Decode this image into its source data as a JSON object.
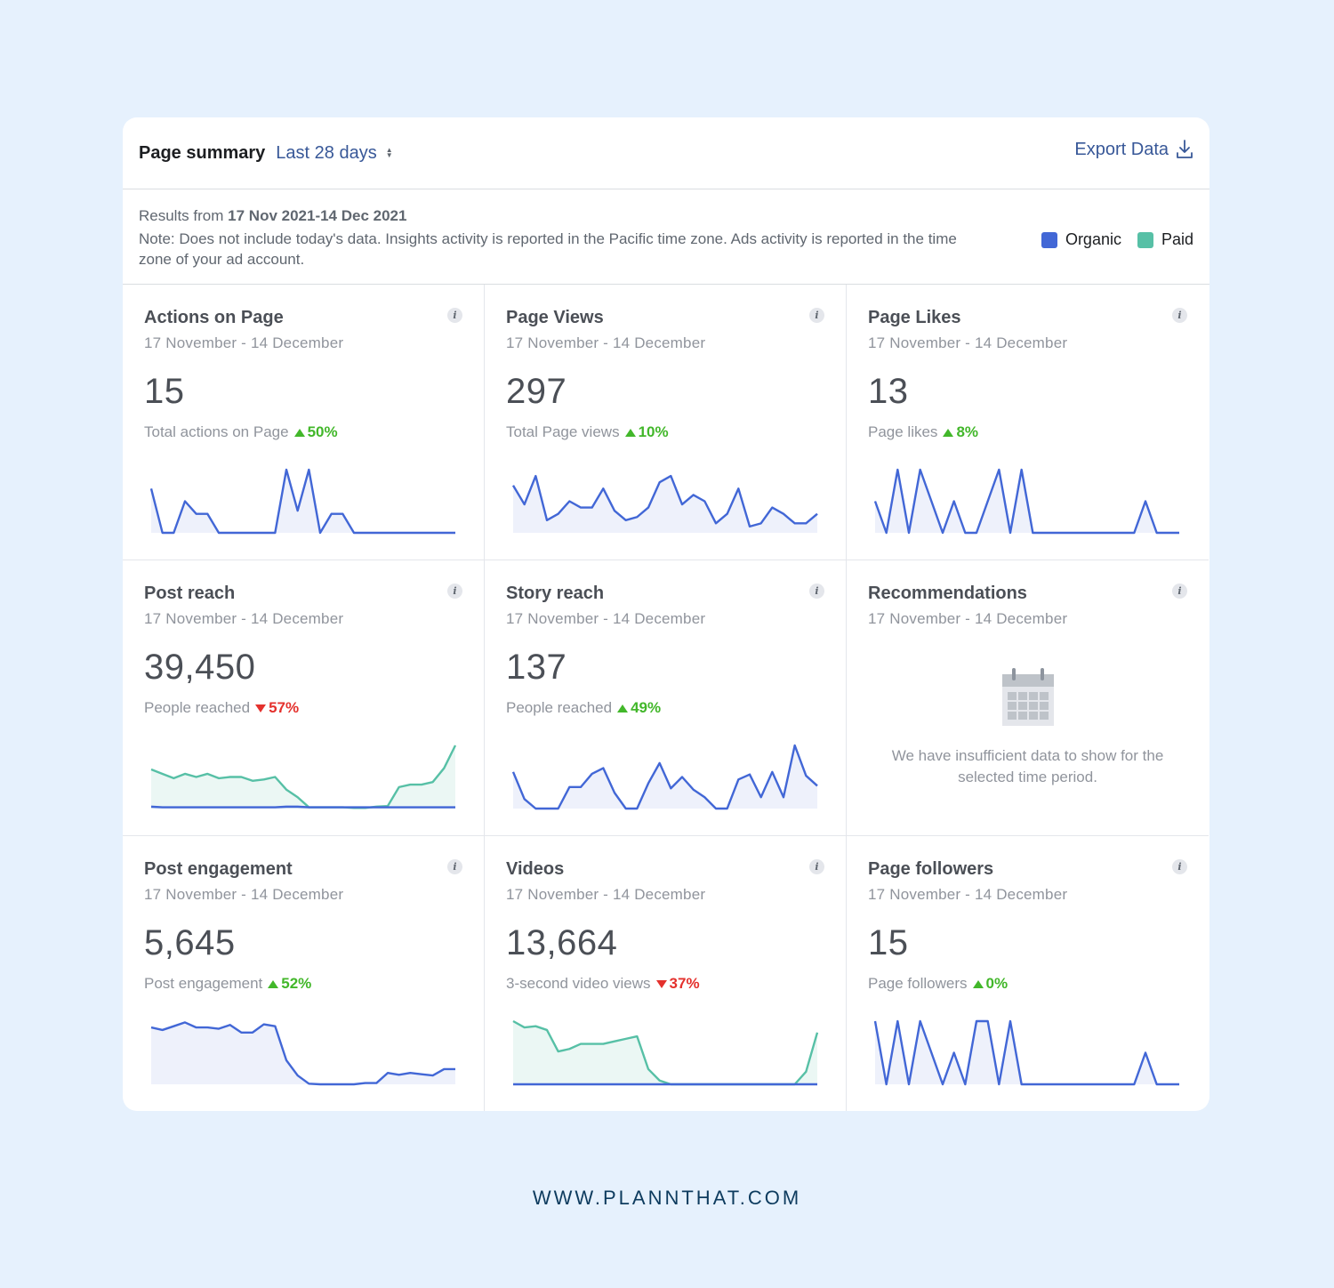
{
  "header": {
    "title": "Page summary",
    "range_label": "Last 28 days",
    "export_label": "Export Data"
  },
  "info": {
    "results_prefix": "Results from",
    "results_range": "17 Nov 2021-14 Dec 2021",
    "note": "Note: Does not include today's data. Insights activity is reported in the Pacific time zone. Ads activity is reported in the time zone of your ad account."
  },
  "legend": [
    {
      "label": "Organic",
      "color": "#4267d6"
    },
    {
      "label": "Paid",
      "color": "#57c0a6"
    }
  ],
  "colors": {
    "organic": "#4267d6",
    "paid": "#57c0a6",
    "up": "#42b72a",
    "down": "#e4312d"
  },
  "tiles": [
    {
      "title": "Actions on Page",
      "date": "17 November - 14 December",
      "value": "15",
      "label": "Total actions on Page",
      "change": "50%",
      "direction": "up"
    },
    {
      "title": "Page Views",
      "date": "17 November - 14 December",
      "value": "297",
      "label": "Total Page views",
      "change": "10%",
      "direction": "up"
    },
    {
      "title": "Page Likes",
      "date": "17 November - 14 December",
      "value": "13",
      "label": "Page likes",
      "change": "8%",
      "direction": "up"
    },
    {
      "title": "Post reach",
      "date": "17 November - 14 December",
      "value": "39,450",
      "label": "People reached",
      "change": "57%",
      "direction": "down"
    },
    {
      "title": "Story reach",
      "date": "17 November - 14 December",
      "value": "137",
      "label": "People reached",
      "change": "49%",
      "direction": "up"
    },
    {
      "title": "Recommendations",
      "date": "17 November - 14 December",
      "empty_message": "We have insufficient data to show for the selected time period.",
      "empty_icon": "calendar-icon"
    },
    {
      "title": "Post engagement",
      "date": "17 November - 14 December",
      "value": "5,645",
      "label": "Post engagement",
      "change": "52%",
      "direction": "up"
    },
    {
      "title": "Videos",
      "date": "17 November - 14 December",
      "value": "13,664",
      "label": "3-second video views",
      "change": "37%",
      "direction": "down"
    },
    {
      "title": "Page followers",
      "date": "17 November - 14 December",
      "value": "15",
      "label": "Page followers",
      "change": "0%",
      "direction": "up"
    }
  ],
  "chart_data": [
    {
      "type": "area",
      "tile": "Actions on Page",
      "ylim": [
        0,
        1
      ],
      "series": [
        {
          "name": "Organic",
          "values": [
            0.7,
            0,
            0,
            0.5,
            0.3,
            0.3,
            0,
            0,
            0,
            0,
            0,
            0,
            1,
            0.35,
            1,
            0,
            0.3,
            0.3,
            0,
            0,
            0,
            0,
            0,
            0,
            0,
            0,
            0,
            0
          ]
        }
      ]
    },
    {
      "type": "area",
      "tile": "Page Views",
      "ylim": [
        0,
        1
      ],
      "series": [
        {
          "name": "Organic",
          "values": [
            0.75,
            0.45,
            0.9,
            0.2,
            0.3,
            0.5,
            0.4,
            0.4,
            0.7,
            0.35,
            0.2,
            0.25,
            0.4,
            0.8,
            0.9,
            0.45,
            0.6,
            0.5,
            0.15,
            0.3,
            0.7,
            0.1,
            0.15,
            0.4,
            0.3,
            0.15,
            0.15,
            0.3
          ]
        }
      ]
    },
    {
      "type": "area",
      "tile": "Page Likes",
      "ylim": [
        0,
        1
      ],
      "series": [
        {
          "name": "Organic",
          "values": [
            0.5,
            0,
            1,
            0,
            1,
            0.5,
            0,
            0.5,
            0,
            0,
            0.5,
            1,
            0,
            1,
            0,
            0,
            0,
            0,
            0,
            0,
            0,
            0,
            0,
            0,
            0.5,
            0,
            0,
            0
          ]
        }
      ]
    },
    {
      "type": "area",
      "tile": "Post reach",
      "ylim": [
        0,
        1
      ],
      "series": [
        {
          "name": "Paid",
          "values": [
            0.62,
            0.55,
            0.48,
            0.55,
            0.5,
            0.55,
            0.48,
            0.5,
            0.5,
            0.44,
            0.46,
            0.5,
            0.3,
            0.18,
            0.02,
            0.02,
            0.02,
            0.02,
            0.01,
            0.01,
            0.03,
            0.04,
            0.34,
            0.38,
            0.38,
            0.42,
            0.64,
            1.0
          ]
        },
        {
          "name": "Organic",
          "values": [
            0.03,
            0.02,
            0.02,
            0.02,
            0.02,
            0.02,
            0.02,
            0.02,
            0.02,
            0.02,
            0.02,
            0.02,
            0.03,
            0.03,
            0.02,
            0.02,
            0.02,
            0.02,
            0.02,
            0.02,
            0.02,
            0.02,
            0.02,
            0.02,
            0.02,
            0.02,
            0.02,
            0.02
          ]
        }
      ]
    },
    {
      "type": "area",
      "tile": "Story reach",
      "ylim": [
        0,
        1
      ],
      "series": [
        {
          "name": "Organic",
          "values": [
            0.58,
            0.15,
            0,
            0,
            0,
            0.34,
            0.34,
            0.55,
            0.64,
            0.25,
            0,
            0,
            0.4,
            0.72,
            0.32,
            0.5,
            0.3,
            0.18,
            0,
            0,
            0.46,
            0.54,
            0.18,
            0.58,
            0.18,
            1.0,
            0.52,
            0.36
          ]
        }
      ]
    },
    {
      "type": "area",
      "tile": "Post engagement",
      "ylim": [
        0,
        1
      ],
      "series": [
        {
          "name": "Organic",
          "values": [
            0.9,
            0.86,
            0.92,
            0.98,
            0.9,
            0.9,
            0.88,
            0.94,
            0.82,
            0.82,
            0.95,
            0.92,
            0.38,
            0.14,
            0.01,
            0,
            0,
            0,
            0,
            0.02,
            0.02,
            0.18,
            0.15,
            0.18,
            0.16,
            0.14,
            0.24,
            0.24
          ]
        }
      ]
    },
    {
      "type": "area",
      "tile": "Videos",
      "ylim": [
        0,
        1
      ],
      "series": [
        {
          "name": "Paid",
          "values": [
            1.0,
            0.9,
            0.92,
            0.86,
            0.52,
            0.56,
            0.64,
            0.64,
            0.64,
            0.68,
            0.72,
            0.76,
            0.24,
            0.06,
            0,
            0,
            0,
            0,
            0,
            0,
            0,
            0,
            0,
            0,
            0,
            0,
            0.2,
            0.82
          ]
        },
        {
          "name": "Organic",
          "values": [
            0,
            0,
            0,
            0,
            0,
            0,
            0,
            0,
            0,
            0,
            0,
            0,
            0,
            0,
            0,
            0,
            0,
            0,
            0,
            0,
            0,
            0,
            0,
            0,
            0,
            0,
            0,
            0
          ]
        }
      ]
    },
    {
      "type": "area",
      "tile": "Page followers",
      "ylim": [
        0,
        1
      ],
      "series": [
        {
          "name": "Organic",
          "values": [
            1,
            0,
            1,
            0,
            1,
            0.5,
            0,
            0.5,
            0,
            1,
            1,
            0,
            1,
            0,
            0,
            0,
            0,
            0,
            0,
            0,
            0,
            0,
            0,
            0,
            0.5,
            0,
            0,
            0
          ]
        }
      ]
    }
  ],
  "footer": "WWW.PLANNTHAT.COM"
}
